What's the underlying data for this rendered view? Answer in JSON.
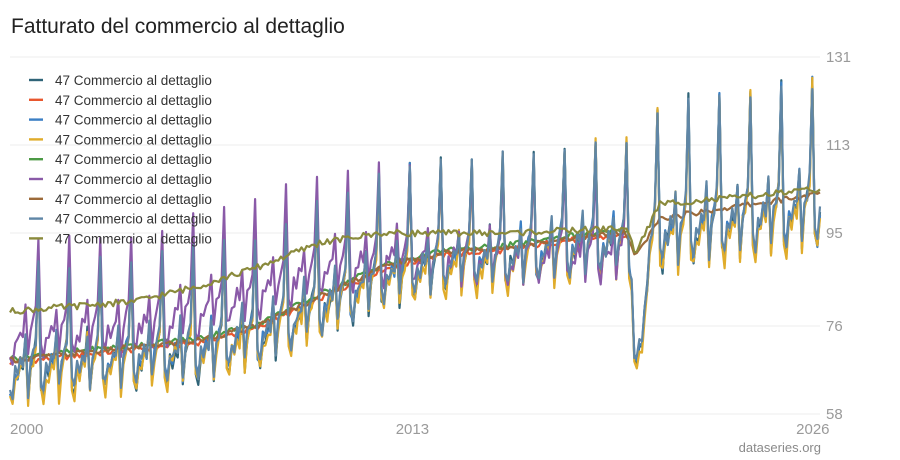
{
  "chart_data": {
    "type": "line",
    "title": "Fatturato del commercio al dettaglio",
    "source": "dataseries.org",
    "x_range": [
      "2000-01",
      "2026-03"
    ],
    "x_ticks": [
      "2000",
      "2013",
      "2026"
    ],
    "y_ticks": [
      58,
      76,
      95,
      113,
      131
    ],
    "ylim": [
      58,
      131
    ],
    "legend_position": "top-left",
    "grid": "horizontal",
    "series": [
      {
        "name": "47 Commercio al dettaglio",
        "color": "#2f6478",
        "kind": "raw",
        "amplitude": 1.0,
        "offset": 0.0,
        "end": "2026-03"
      },
      {
        "name": "47 Commercio al dettaglio",
        "color": "#e8572e",
        "kind": "trend",
        "offset": -0.5,
        "end": "2019-12"
      },
      {
        "name": "47 Commercio al dettaglio",
        "color": "#3b7fc4",
        "kind": "raw",
        "amplitude": 0.98,
        "offset": 0.2,
        "end": "2026-03"
      },
      {
        "name": "47 Commercio al dettaglio",
        "color": "#e0ac2b",
        "kind": "raw",
        "amplitude": 1.02,
        "offset": -0.6,
        "end": "2026-03"
      },
      {
        "name": "47 Commercio al dettaglio",
        "color": "#4c9a45",
        "kind": "trend",
        "offset": 0.4,
        "end": "2019-12"
      },
      {
        "name": "47 Commercio al dettaglio",
        "color": "#8a5aa8",
        "kind": "raw2",
        "amplitude": 1.0,
        "offset": 0.0,
        "end": "2019-12"
      },
      {
        "name": "47 Commercio al dettaglio",
        "color": "#9c6a3a",
        "kind": "trend",
        "offset": 0.0,
        "end": "2026-03"
      },
      {
        "name": "47 Commercio al dettaglio",
        "color": "#5f86a6",
        "kind": "raw",
        "amplitude": 0.95,
        "offset": 0.5,
        "end": "2026-03"
      },
      {
        "name": "47 Commercio al dettaglio",
        "color": "#8a8a3c",
        "kind": "trend2",
        "offset": 0.0,
        "end": "2026-03"
      }
    ]
  }
}
